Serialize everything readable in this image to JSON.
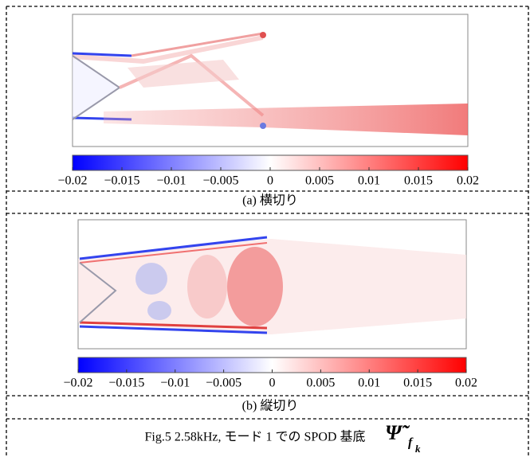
{
  "panels": [
    {
      "colorbar": {
        "lim": [
          -0.02,
          0.02
        ],
        "ticks": [
          {
            "value": -0.02,
            "label": "−0.02"
          },
          {
            "value": -0.015,
            "label": "−0.015"
          },
          {
            "value": -0.01,
            "label": "−0.01"
          },
          {
            "value": -0.005,
            "label": "−0.005"
          },
          0,
          0.005,
          0.01,
          0.015,
          0.02
        ]
      },
      "caption": "(a) 横切り"
    },
    {
      "colorbar": {
        "lim": [
          -0.02,
          0.02
        ],
        "ticks": [
          {
            "value": -0.02,
            "label": "−0.02"
          },
          {
            "value": -0.015,
            "label": "−0.015"
          },
          {
            "value": -0.01,
            "label": "−0.01"
          },
          {
            "value": -0.005,
            "label": "−0.005"
          },
          0,
          0.005,
          0.01,
          0.015,
          0.02
        ]
      },
      "caption": "(b) 縦切り"
    }
  ],
  "figure_caption": {
    "text": "Fig.5 2.58kHz, モード 1 での SPOD 基底",
    "symbol": "Ψ̃",
    "subscript": "f",
    "subsubscript": "k"
  }
}
